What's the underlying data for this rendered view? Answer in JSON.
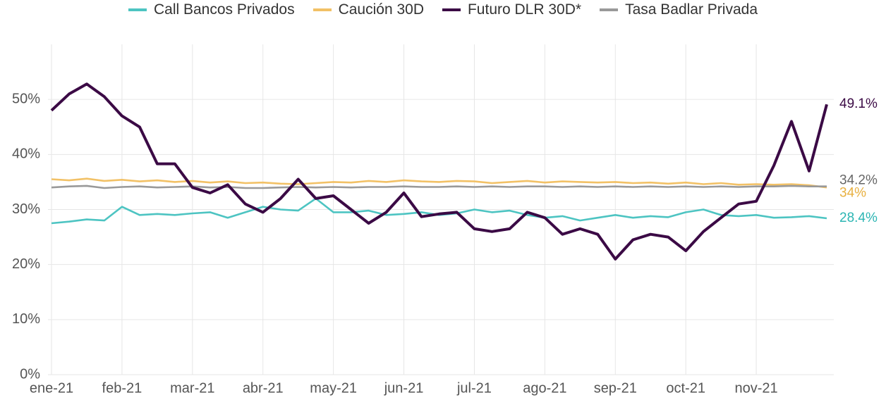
{
  "chart_data": {
    "type": "line",
    "categories": [
      "ene-21",
      null,
      null,
      null,
      "feb-21",
      null,
      null,
      null,
      "mar-21",
      null,
      null,
      null,
      "abr-21",
      null,
      null,
      null,
      "may-21",
      null,
      null,
      null,
      "jun-21",
      null,
      null,
      null,
      "jul-21",
      null,
      null,
      null,
      "ago-21",
      null,
      null,
      null,
      "sep-21",
      null,
      null,
      null,
      "oct-21",
      null,
      null,
      null,
      "nov-21",
      null,
      null,
      null,
      null
    ],
    "series": [
      {
        "name": "Call Bancos Privados",
        "color": "#4dc4c2",
        "end_label": "28.4%",
        "values": [
          27.5,
          27.8,
          28.2,
          28.0,
          30.5,
          29.0,
          29.2,
          29.0,
          29.3,
          29.5,
          28.5,
          29.5,
          30.5,
          30.0,
          29.8,
          32.0,
          29.5,
          29.5,
          29.8,
          29.0,
          29.2,
          29.5,
          29.0,
          29.3,
          30.0,
          29.5,
          29.8,
          29.0,
          28.5,
          28.8,
          28.0,
          28.5,
          29.0,
          28.5,
          28.8,
          28.6,
          29.5,
          30.0,
          29.0,
          28.8,
          29.0,
          28.5,
          28.6,
          28.8,
          28.4
        ]
      },
      {
        "name": "Caución 30D",
        "color": "#f2c166",
        "end_label": "34%",
        "values": [
          35.5,
          35.3,
          35.6,
          35.2,
          35.4,
          35.1,
          35.3,
          35.0,
          35.2,
          34.9,
          35.1,
          34.8,
          34.9,
          34.7,
          34.6,
          34.8,
          35.0,
          34.9,
          35.2,
          35.0,
          35.3,
          35.1,
          35.0,
          35.2,
          35.1,
          34.8,
          35.0,
          35.2,
          34.9,
          35.1,
          35.0,
          34.9,
          35.0,
          34.8,
          34.9,
          34.7,
          34.9,
          34.6,
          34.8,
          34.5,
          34.6,
          34.5,
          34.6,
          34.4,
          34
        ]
      },
      {
        "name": "Futuro DLR 30D*",
        "color": "#3b0a45",
        "end_label": "49.1%",
        "values": [
          48,
          51,
          52.8,
          50.5,
          47,
          45,
          38.3,
          38.3,
          34,
          33,
          34.5,
          31,
          29.5,
          32,
          35.5,
          32,
          32.5,
          30,
          27.5,
          29.5,
          33,
          28.7,
          29.2,
          29.5,
          26.5,
          26,
          26.5,
          29.5,
          28.5,
          25.5,
          26.5,
          25.5,
          21,
          24.5,
          25.5,
          25,
          22.5,
          26,
          28.5,
          31,
          31.5,
          38,
          46,
          37,
          49.1
        ]
      },
      {
        "name": "Tasa Badlar Privada",
        "color": "#999999",
        "end_label": "34.2%",
        "values": [
          34.0,
          34.2,
          34.3,
          33.9,
          34.1,
          34.2,
          34.0,
          34.1,
          34.2,
          34.0,
          34.1,
          33.9,
          33.9,
          34.0,
          34.1,
          34.0,
          34.1,
          34.0,
          34.1,
          34.1,
          34.2,
          34.1,
          34.1,
          34.2,
          34.1,
          34.2,
          34.1,
          34.2,
          34.2,
          34.1,
          34.2,
          34.1,
          34.2,
          34.1,
          34.2,
          34.1,
          34.2,
          34.1,
          34.2,
          34.1,
          34.2,
          34.2,
          34.3,
          34.2,
          34.2
        ]
      }
    ],
    "ylim": [
      0,
      60
    ],
    "yticks": [
      {
        "value": 0,
        "label": "0%"
      },
      {
        "value": 10,
        "label": "10%"
      },
      {
        "value": 20,
        "label": "20%"
      },
      {
        "value": 30,
        "label": "30%"
      },
      {
        "value": 40,
        "label": "40%"
      },
      {
        "value": 50,
        "label": "50%"
      }
    ],
    "grid": true
  }
}
